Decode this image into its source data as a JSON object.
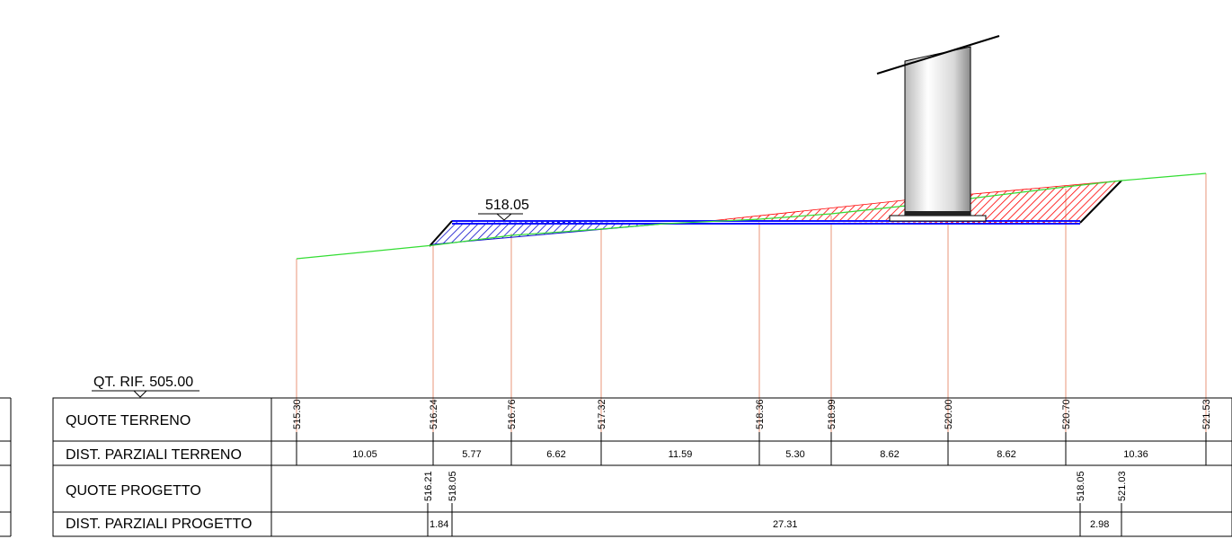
{
  "grade_level": "518.05",
  "reference_label": "QT. RIF. 505.00",
  "rows": {
    "quote_terreno": "QUOTE TERRENO",
    "dist_parziali_terreno": "DIST. PARZIALI TERRENO",
    "quote_progetto": "QUOTE PROGETTO",
    "dist_parziali_progetto": "DIST. PARZIALI PROGETTO"
  },
  "terrain_elevations": [
    "515.30",
    "516.24",
    "516.76",
    "517.32",
    "518.36",
    "518.99",
    "520.00",
    "520.70",
    "521.53"
  ],
  "terrain_distances": [
    "10.05",
    "5.77",
    "6.62",
    "11.59",
    "5.30",
    "8.62",
    "8.62",
    "10.36"
  ],
  "project_elevations": [
    "516.21",
    "518.05",
    "518.05",
    "521.03"
  ],
  "project_distances": [
    "1.84",
    "27.31",
    "2.98"
  ],
  "colors": {
    "terrain_line": "#33dd33",
    "fill_area": "#ff0000",
    "cut_area": "#1010cc",
    "vertical_lines": "#e8957a",
    "project_line": "#1010ff"
  }
}
